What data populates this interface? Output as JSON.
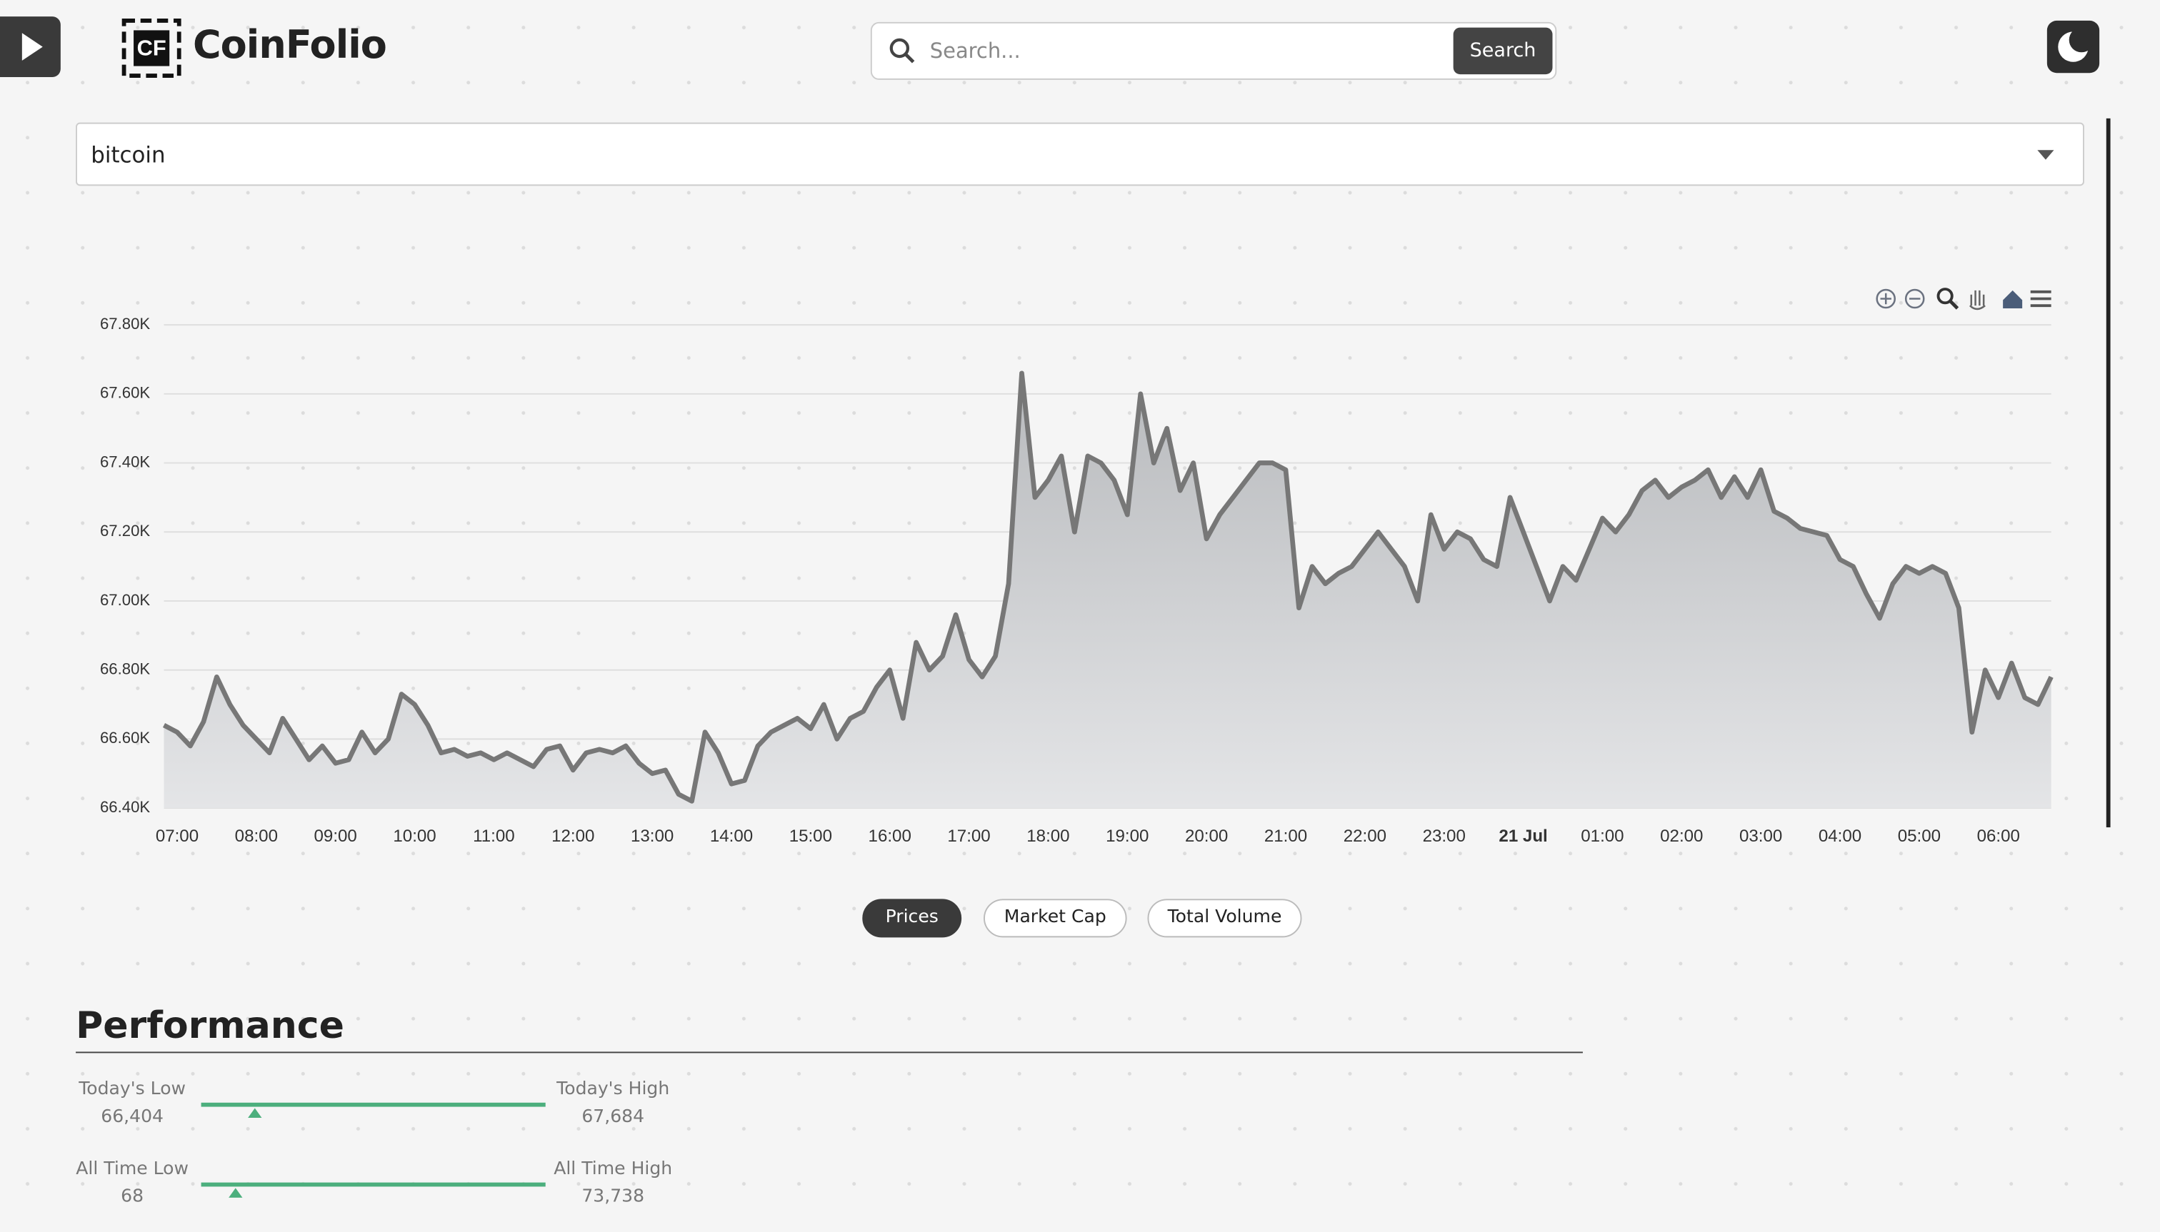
{
  "header": {
    "brand": "CoinFolio",
    "search_placeholder": "Search...",
    "search_button": "Search"
  },
  "coin_select": "bitcoin",
  "chart_data": {
    "type": "area",
    "categories": [
      null,
      "07:00",
      null,
      null,
      null,
      null,
      null,
      "08:00",
      null,
      null,
      null,
      null,
      null,
      "09:00",
      null,
      null,
      null,
      null,
      null,
      "10:00",
      null,
      null,
      null,
      null,
      null,
      "11:00",
      null,
      null,
      null,
      null,
      null,
      "12:00",
      null,
      null,
      null,
      null,
      null,
      "13:00",
      null,
      null,
      null,
      null,
      null,
      "14:00",
      null,
      null,
      null,
      null,
      null,
      "15:00",
      null,
      null,
      null,
      null,
      null,
      "16:00",
      null,
      null,
      null,
      null,
      null,
      "17:00",
      null,
      null,
      null,
      null,
      null,
      "18:00",
      null,
      null,
      null,
      null,
      null,
      "19:00",
      null,
      null,
      null,
      null,
      null,
      "20:00",
      null,
      null,
      null,
      null,
      null,
      "21:00",
      null,
      null,
      null,
      null,
      null,
      "22:00",
      null,
      null,
      null,
      null,
      null,
      "23:00",
      null,
      null,
      null,
      null,
      null,
      "21 Jul",
      null,
      null,
      null,
      null,
      null,
      "01:00",
      null,
      null,
      null,
      null,
      null,
      "02:00",
      null,
      null,
      null,
      null,
      null,
      "03:00",
      null,
      null,
      null,
      null,
      null,
      "04:00",
      null,
      null,
      null,
      null,
      null,
      "05:00",
      null,
      null,
      null,
      null,
      null,
      "06:00",
      null,
      null,
      null,
      null
    ],
    "values": [
      66640,
      66620,
      66580,
      66650,
      66780,
      66700,
      66640,
      66600,
      66560,
      66660,
      66600,
      66540,
      66580,
      66530,
      66540,
      66620,
      66560,
      66600,
      66730,
      66700,
      66640,
      66560,
      66570,
      66550,
      66560,
      66540,
      66560,
      66540,
      66520,
      66570,
      66580,
      66510,
      66560,
      66570,
      66560,
      66580,
      66530,
      66500,
      66510,
      66440,
      66420,
      66620,
      66560,
      66470,
      66480,
      66580,
      66620,
      66640,
      66660,
      66630,
      66700,
      66600,
      66660,
      66680,
      66750,
      66800,
      66660,
      66880,
      66800,
      66840,
      66960,
      66830,
      66780,
      66840,
      67050,
      67660,
      67300,
      67350,
      67420,
      67200,
      67420,
      67400,
      67350,
      67250,
      67600,
      67400,
      67500,
      67320,
      67400,
      67180,
      67250,
      67300,
      67350,
      67400,
      67400,
      67380,
      66980,
      67100,
      67050,
      67080,
      67100,
      67150,
      67200,
      67150,
      67100,
      67000,
      67250,
      67150,
      67200,
      67180,
      67120,
      67100,
      67300,
      67200,
      67100,
      67000,
      67100,
      67060,
      67150,
      67240,
      67200,
      67250,
      67320,
      67350,
      67300,
      67330,
      67350,
      67380,
      67300,
      67360,
      67300,
      67380,
      67260,
      67240,
      67210,
      67200,
      67190,
      67120,
      67100,
      67020,
      66950,
      67050,
      67100,
      67080,
      67100,
      67080,
      66980,
      66620,
      66800,
      66720,
      66820,
      66720,
      66700,
      66780
    ],
    "color": "#777777",
    "ylim": [
      66400,
      67800
    ],
    "yticks": [
      {
        "value": 66400,
        "label": "66.40K"
      },
      {
        "value": 66600,
        "label": "66.60K"
      },
      {
        "value": 66800,
        "label": "66.80K"
      },
      {
        "value": 67000,
        "label": "67.00K"
      },
      {
        "value": 67200,
        "label": "67.20K"
      },
      {
        "value": 67400,
        "label": "67.40K"
      },
      {
        "value": 67600,
        "label": "67.60K"
      },
      {
        "value": 67800,
        "label": "67.80K"
      }
    ],
    "grid": true
  },
  "tabs": [
    "Prices",
    "Market Cap",
    "Total Volume"
  ],
  "performance": {
    "title": "Performance",
    "rows": [
      {
        "low_label": "Today's Low",
        "low": "66,404",
        "high_label": "Today's High",
        "high": "67,684"
      },
      {
        "low_label": "All Time Low",
        "low": "68",
        "high_label": "All Time High",
        "high": "73,738"
      }
    ]
  }
}
